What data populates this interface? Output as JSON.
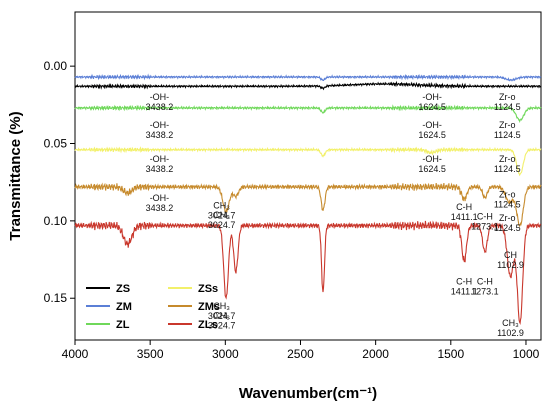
{
  "chart_data": {
    "type": "line",
    "title": "",
    "xlabel": "Wavenumber(cm⁻¹)",
    "ylabel": "Transmittance (%)",
    "xlim": [
      4000,
      900
    ],
    "ylim": [
      -0.035,
      0.177
    ],
    "x_ticks": [
      4000,
      3500,
      3000,
      2500,
      2000,
      1500,
      1000
    ],
    "x_tick_labels": [
      "4000",
      "3500",
      "3000",
      "2500",
      "2000",
      "1500",
      "1000"
    ],
    "y_ticks": [
      0.0,
      0.05,
      0.1,
      0.15
    ],
    "y_tick_labels": [
      "0.00",
      "0.05",
      "0.10",
      "0.15"
    ],
    "y_inverted": true,
    "grid": false,
    "legend_position": "bottom-left",
    "legend_columns": 2,
    "series": [
      {
        "name": "ZS",
        "color": "#000000",
        "baseline": 0.013,
        "noise": 0.0007,
        "features": [
          [
            2350,
            0.0015,
            20
          ],
          [
            1950,
            -0.0015,
            300
          ]
        ]
      },
      {
        "name": "ZM",
        "color": "#5b7fd6",
        "baseline": 0.007,
        "noise": 0.0007,
        "features": [
          [
            2350,
            0.002,
            20
          ],
          [
            1100,
            0.002,
            50
          ]
        ]
      },
      {
        "name": "ZL",
        "color": "#6fd85a",
        "baseline": 0.027,
        "noise": 0.0008,
        "features": [
          [
            2350,
            0.003,
            20
          ],
          [
            1040,
            0.008,
            35
          ]
        ]
      },
      {
        "name": "ZSs",
        "color": "#f2f06a",
        "baseline": 0.054,
        "noise": 0.0008,
        "features": [
          [
            2350,
            0.004,
            20
          ],
          [
            1630,
            0.002,
            40
          ],
          [
            1040,
            0.016,
            30
          ]
        ]
      },
      {
        "name": "ZMs",
        "color": "#c68a2c",
        "baseline": 0.078,
        "noise": 0.0015,
        "features": [
          [
            3650,
            0.004,
            40
          ],
          [
            2995,
            0.016,
            30
          ],
          [
            2930,
            0.006,
            25
          ],
          [
            2350,
            0.015,
            18
          ],
          [
            1411,
            0.008,
            25
          ],
          [
            1273,
            0.007,
            22
          ],
          [
            1110,
            0.01,
            35
          ],
          [
            1040,
            0.025,
            30
          ]
        ]
      },
      {
        "name": "ZLs",
        "color": "#c9372c",
        "baseline": 0.103,
        "noise": 0.0018,
        "features": [
          [
            3650,
            0.012,
            40
          ],
          [
            2995,
            0.047,
            22
          ],
          [
            2930,
            0.03,
            20
          ],
          [
            2350,
            0.043,
            14
          ],
          [
            1411,
            0.023,
            22
          ],
          [
            1273,
            0.017,
            22
          ],
          [
            1103,
            0.033,
            30
          ],
          [
            1040,
            0.063,
            25
          ]
        ]
      }
    ],
    "annotations": [
      {
        "lines": [
          "-OH-",
          "3438.2"
        ],
        "x": 3438.2,
        "y": 0.022
      },
      {
        "lines": [
          "-OH-",
          "3438.2"
        ],
        "x": 3438.2,
        "y": 0.04
      },
      {
        "lines": [
          "-OH-",
          "3438.2"
        ],
        "x": 3438.2,
        "y": 0.062
      },
      {
        "lines": [
          "-OH-",
          "3438.2"
        ],
        "x": 3438.2,
        "y": 0.087
      },
      {
        "lines": [
          "-OH-",
          "1624.5"
        ],
        "x": 1624.5,
        "y": 0.022
      },
      {
        "lines": [
          "-OH-",
          "1624.5"
        ],
        "x": 1624.5,
        "y": 0.04
      },
      {
        "lines": [
          "-OH-",
          "1624.5"
        ],
        "x": 1624.5,
        "y": 0.062
      },
      {
        "lines": [
          "Zr-o",
          "1124.5"
        ],
        "x": 1124.5,
        "y": 0.022
      },
      {
        "lines": [
          "Zr-o",
          "1124.5"
        ],
        "x": 1124.5,
        "y": 0.04
      },
      {
        "lines": [
          "Zr-o",
          "1124.5"
        ],
        "x": 1124.5,
        "y": 0.062
      },
      {
        "lines": [
          "Zr-o",
          "1124.5"
        ],
        "x": 1124.5,
        "y": 0.085
      },
      {
        "lines": [
          "Zr-o",
          "1124.5"
        ],
        "x": 1124.5,
        "y": 0.1
      },
      {
        "lines": [
          "CH₃",
          "3024.7"
        ],
        "x": 3024.7,
        "y": 0.098
      },
      {
        "lines": [
          "CH₃",
          "3024.7"
        ],
        "x": 3024.7,
        "y": 0.092
      },
      {
        "lines": [
          "CH₃",
          "3024.7"
        ],
        "x": 3024.7,
        "y": 0.163
      },
      {
        "lines": [
          "CH₃",
          "3024.7"
        ],
        "x": 3024.7,
        "y": 0.157
      },
      {
        "lines": [
          "C-H",
          "1411.1"
        ],
        "x": 1411.1,
        "y": 0.093
      },
      {
        "lines": [
          "C-H",
          "1273.1"
        ],
        "x": 1273.1,
        "y": 0.099
      },
      {
        "lines": [
          "C-H",
          "1411.1"
        ],
        "x": 1411.1,
        "y": 0.141
      },
      {
        "lines": [
          "C-H",
          "1273.1"
        ],
        "x": 1273.1,
        "y": 0.141
      },
      {
        "lines": [
          "CH",
          "1102.9"
        ],
        "x": 1102.9,
        "y": 0.124
      },
      {
        "lines": [
          "CH₃",
          "1102.9"
        ],
        "x": 1102.9,
        "y": 0.168
      }
    ]
  }
}
